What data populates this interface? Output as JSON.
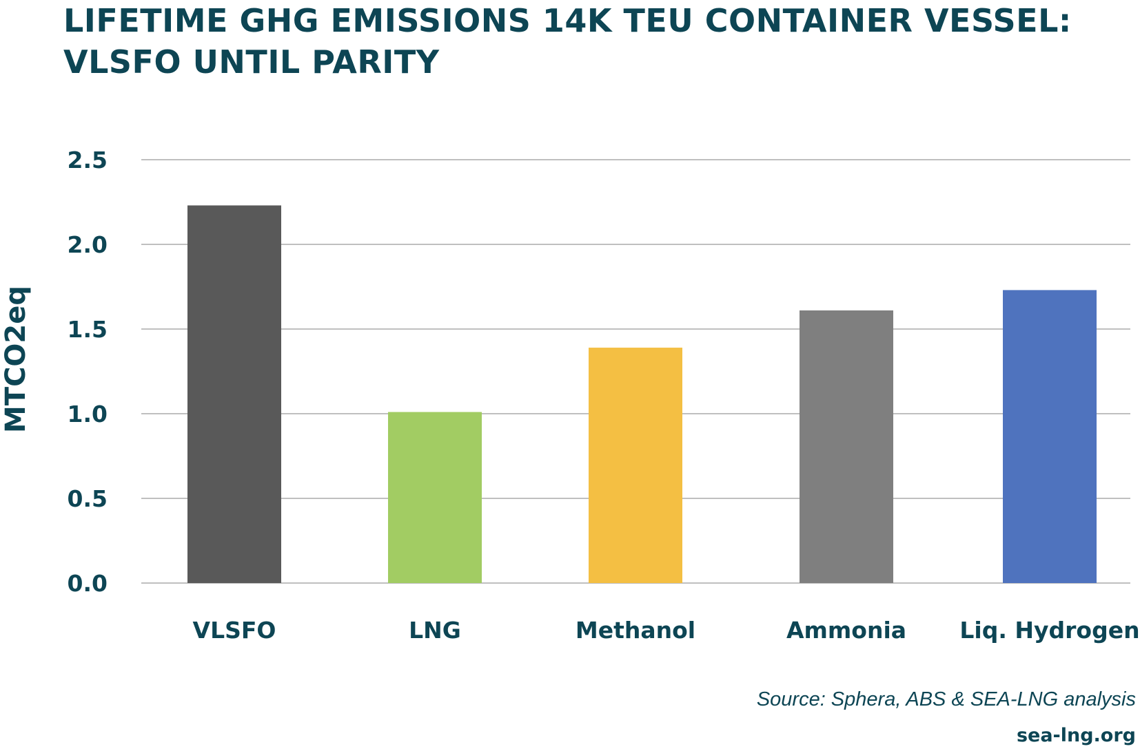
{
  "title": {
    "line1": "LIFETIME GHG EMISSIONS 14K TEU CONTAINER VESSEL:",
    "line2": "VLSFO UNTIL PARITY"
  },
  "footer": {
    "source": "Source: Sphera, ABS & SEA-LNG analysis",
    "website": "sea-lng.org"
  },
  "colors": {
    "text": "#0d4554",
    "grid": "#bfbfbf"
  },
  "chart_data": {
    "type": "bar",
    "title": "LIFETIME GHG EMISSIONS 14K TEU CONTAINER VESSEL: VLSFO UNTIL PARITY",
    "xlabel": "",
    "ylabel": "MTCO2eq",
    "ylim": [
      0,
      2.5
    ],
    "yticks": [
      "0.0",
      "0.5",
      "1.0",
      "1.5",
      "2.0",
      "2.5"
    ],
    "categories": [
      "VLSFO",
      "LNG",
      "Methanol",
      "Ammonia",
      "Liq. Hydrogen"
    ],
    "values": [
      2.23,
      1.01,
      1.39,
      1.61,
      1.73
    ],
    "bar_colors": [
      "#595959",
      "#a2cc63",
      "#f4bf43",
      "#7f7f7f",
      "#4f73be"
    ],
    "grid": true,
    "legend": "none"
  }
}
